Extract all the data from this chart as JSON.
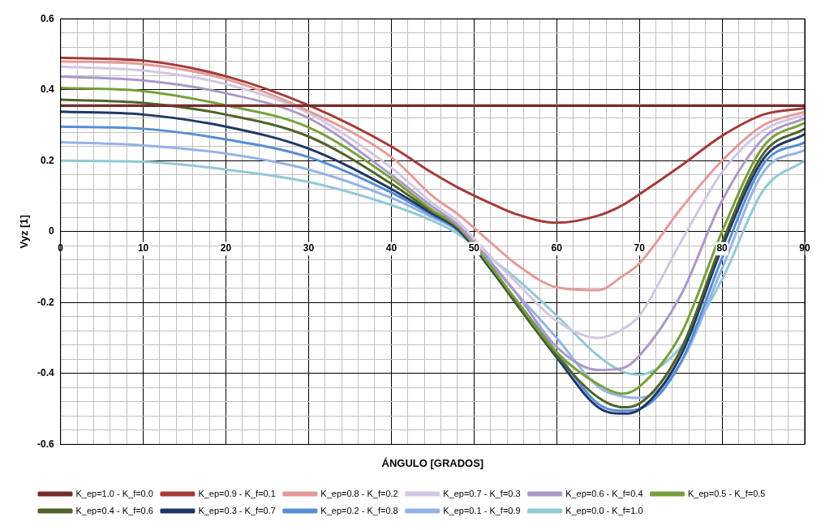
{
  "chart_data": {
    "type": "line",
    "xlabel": "ÁNGULO [GRADOS]",
    "ylabel": "Vyz [1]",
    "x": [
      0,
      10,
      20,
      30,
      40,
      45,
      48,
      52,
      55,
      60,
      65,
      68,
      70,
      75,
      80,
      85,
      90
    ],
    "xlim": [
      0,
      90
    ],
    "xticks": [
      0,
      10,
      20,
      30,
      40,
      50,
      60,
      70,
      80,
      90
    ],
    "ylim": [
      -0.6,
      0.6
    ],
    "yticks": [
      -0.6,
      -0.4,
      -0.2,
      0,
      0.2,
      0.4,
      0.6
    ],
    "grid": true,
    "legend": "bottom",
    "marker": "none",
    "line_style": "solid",
    "series": [
      {
        "name": "K_ep=1.0 - K_f=0.0",
        "color": "#772c2a",
        "values": [
          0.355,
          0.355,
          0.355,
          0.355,
          0.355,
          0.355,
          0.355,
          0.355,
          0.355,
          0.355,
          0.355,
          0.355,
          0.355,
          0.355,
          0.355,
          0.355,
          0.355
        ]
      },
      {
        "name": "K_ep=0.9 - K_f=0.1",
        "color": "#a33b39",
        "values": [
          0.49,
          0.482,
          0.438,
          0.356,
          0.24,
          0.165,
          0.125,
          0.08,
          0.05,
          0.025,
          0.045,
          0.075,
          0.105,
          0.185,
          0.27,
          0.33,
          0.348
        ]
      },
      {
        "name": "K_ep=0.8 - K_f=0.2",
        "color": "#e49a98",
        "values": [
          0.48,
          0.472,
          0.43,
          0.34,
          0.21,
          0.1,
          0.05,
          -0.03,
          -0.09,
          -0.157,
          -0.165,
          -0.125,
          -0.09,
          0.064,
          0.2,
          0.3,
          0.338
        ]
      },
      {
        "name": "K_ep=0.7 - K_f=0.3",
        "color": "#d3c6e0",
        "values": [
          0.465,
          0.454,
          0.416,
          0.334,
          0.18,
          0.08,
          0.03,
          -0.07,
          -0.14,
          -0.252,
          -0.3,
          -0.275,
          -0.237,
          -0.03,
          0.168,
          0.285,
          0.33
        ]
      },
      {
        "name": "K_ep=0.6 - K_f=0.4",
        "color": "#ab98c8",
        "values": [
          0.437,
          0.426,
          0.39,
          0.32,
          0.16,
          0.07,
          0.02,
          -0.085,
          -0.17,
          -0.325,
          -0.39,
          -0.385,
          -0.35,
          -0.18,
          0.087,
          0.263,
          0.32
        ]
      },
      {
        "name": "K_ep=0.5 - K_f=0.5",
        "color": "#77a03c",
        "values": [
          0.405,
          0.396,
          0.356,
          0.294,
          0.15,
          0.06,
          0.015,
          -0.097,
          -0.19,
          -0.34,
          -0.43,
          -0.457,
          -0.437,
          -0.29,
          0.0,
          0.24,
          0.307
        ]
      },
      {
        "name": "K_ep=0.4 - K_f=0.6",
        "color": "#4f6228",
        "values": [
          0.372,
          0.363,
          0.33,
          0.268,
          0.135,
          0.055,
          0.012,
          -0.1,
          -0.2,
          -0.35,
          -0.467,
          -0.495,
          -0.485,
          -0.334,
          -0.03,
          0.22,
          0.29
        ]
      },
      {
        "name": "K_ep=0.3 - K_f=0.7",
        "color": "#1f3864",
        "values": [
          0.338,
          0.33,
          0.296,
          0.234,
          0.12,
          0.05,
          0.008,
          -0.105,
          -0.2,
          -0.355,
          -0.495,
          -0.513,
          -0.502,
          -0.35,
          -0.046,
          0.205,
          0.275
        ]
      },
      {
        "name": "K_ep=0.2 - K_f=0.8",
        "color": "#558ed5",
        "values": [
          0.296,
          0.29,
          0.26,
          0.21,
          0.11,
          0.045,
          0.005,
          -0.1,
          -0.19,
          -0.34,
          -0.485,
          -0.505,
          -0.5,
          -0.37,
          -0.075,
          0.19,
          0.252
        ]
      },
      {
        "name": "K_ep=0.1 - K_f=0.9",
        "color": "#95b3e6",
        "values": [
          0.252,
          0.243,
          0.22,
          0.175,
          0.095,
          0.04,
          0.003,
          -0.09,
          -0.17,
          -0.3,
          -0.437,
          -0.465,
          -0.469,
          -0.37,
          -0.104,
          0.168,
          0.23
        ]
      },
      {
        "name": "K_ep=0.0 - K_f=1.0",
        "color": "#93c8d6",
        "values": [
          0.2,
          0.197,
          0.175,
          0.14,
          0.075,
          0.03,
          -0.005,
          -0.075,
          -0.13,
          -0.237,
          -0.35,
          -0.395,
          -0.403,
          -0.326,
          -0.135,
          0.117,
          0.2
        ]
      }
    ]
  }
}
